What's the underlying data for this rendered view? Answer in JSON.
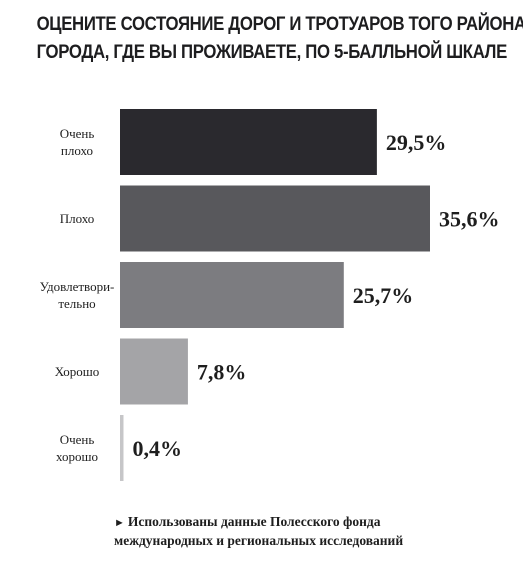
{
  "chart_data": {
    "type": "bar",
    "orientation": "horizontal",
    "title_lines": [
      "ОЦЕНИТЕ СОСТОЯНИЕ ДОРОГ И ТРОТУАРОВ ТОГО РАЙОНА",
      "ГОРОДА, ГДЕ ВЫ ПРОЖИВАЕТЕ, ПО 5-БАЛЛЬНОЙ ШКАЛЕ"
    ],
    "categories": [
      [
        "Очень",
        "плохо"
      ],
      [
        "Плохо"
      ],
      [
        "Удовлетвори-",
        "тельно"
      ],
      [
        "Хорошо"
      ],
      [
        "Очень",
        "хорошо"
      ]
    ],
    "values": [
      29.5,
      35.6,
      25.7,
      7.8,
      0.4
    ],
    "value_labels": [
      "29,5%",
      "35,6%",
      "25,7%",
      "7,8%",
      "0,4%"
    ],
    "bar_colors": [
      "#2a292e",
      "#58585c",
      "#7c7c80",
      "#a4a4a7",
      "#c6c6c8"
    ],
    "xlim": [
      0,
      35.6
    ],
    "legend": false,
    "grid": false
  },
  "source": {
    "marker": "►",
    "line1": "Использованы данные Полесского фонда",
    "line2": "международных и региональных исследований"
  }
}
